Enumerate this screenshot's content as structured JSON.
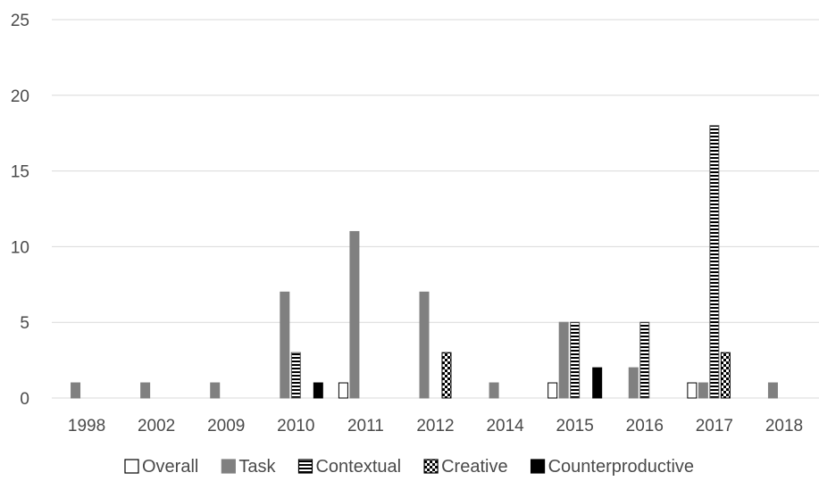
{
  "chart_data": {
    "type": "bar",
    "title": "",
    "xlabel": "",
    "ylabel": "",
    "categories": [
      "1998",
      "2002",
      "2009",
      "2010",
      "2011",
      "2012",
      "2014",
      "2015",
      "2016",
      "2017",
      "2018"
    ],
    "ylim": [
      0,
      25
    ],
    "yticks": [
      "0",
      "5",
      "10",
      "15",
      "20",
      "25"
    ],
    "grid": true,
    "legend_position": "bottom",
    "series": [
      {
        "name": "Overall",
        "pattern": "hollow",
        "color": "#ffffff",
        "stroke": "#000000",
        "values": [
          0,
          0,
          0,
          0,
          1,
          0,
          0,
          1,
          0,
          1,
          0
        ]
      },
      {
        "name": "Task",
        "pattern": "solid-gray",
        "color": "#808080",
        "stroke": "#808080",
        "values": [
          1,
          1,
          1,
          7,
          11,
          7,
          1,
          5,
          2,
          1,
          1
        ]
      },
      {
        "name": "Contextual",
        "pattern": "horizontal-stripes",
        "color": "#000000",
        "stroke": "#555555",
        "values": [
          0,
          0,
          0,
          3,
          0,
          0,
          0,
          5,
          5,
          18,
          0
        ]
      },
      {
        "name": "Creative",
        "pattern": "checkerboard",
        "color": "#000000",
        "stroke": "#000000",
        "values": [
          0,
          0,
          0,
          0,
          0,
          3,
          0,
          0,
          0,
          3,
          0
        ]
      },
      {
        "name": "Counterproductive",
        "pattern": "solid-black",
        "color": "#000000",
        "stroke": "#000000",
        "values": [
          0,
          0,
          0,
          1,
          0,
          0,
          0,
          2,
          0,
          0,
          0
        ]
      }
    ],
    "colors": {
      "grid": "#d9d9d9",
      "axis_text": "#4a4a4a"
    }
  }
}
